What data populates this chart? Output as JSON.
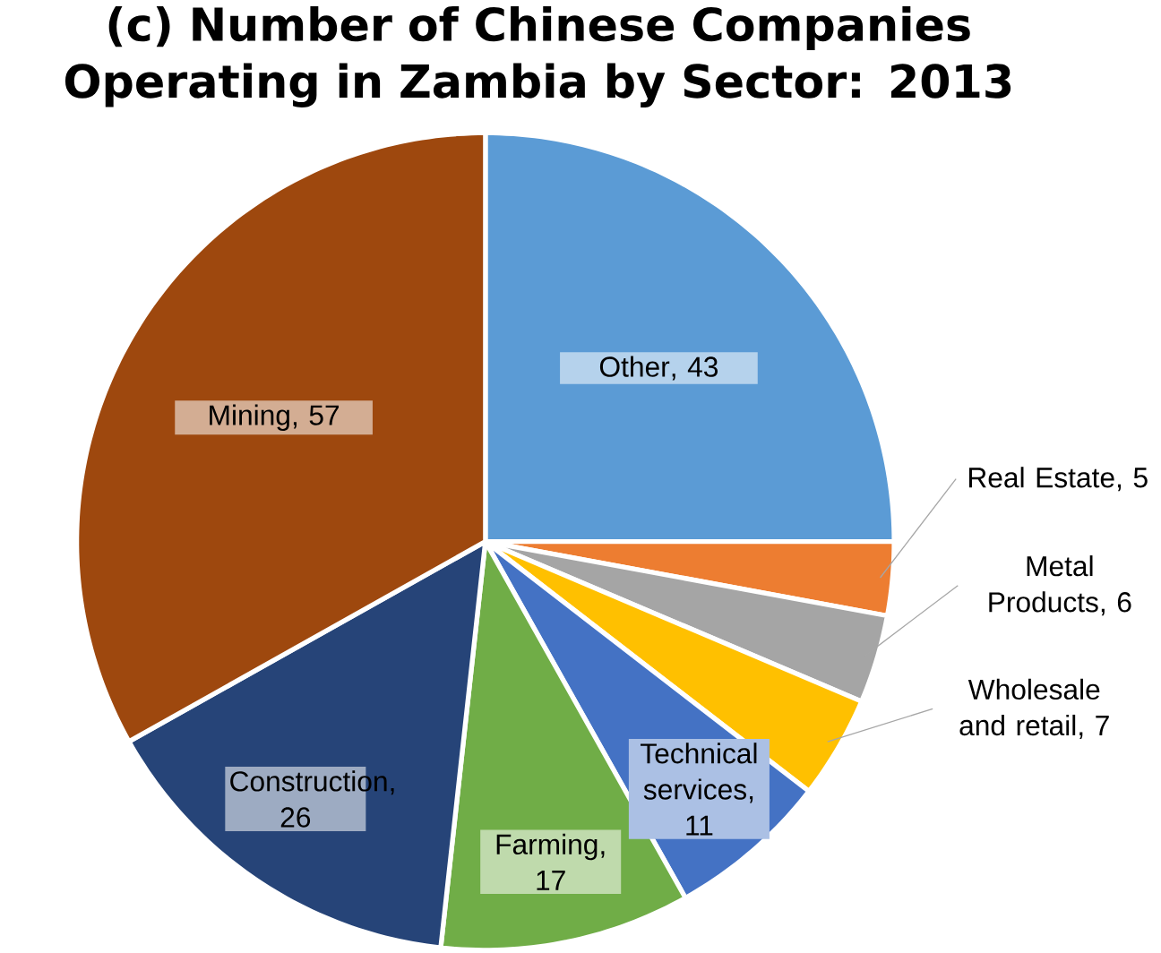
{
  "chart_data": {
    "type": "pie",
    "title": "(c) Number of Chinese Companies Operating in Zambia by Sector: 2013",
    "categories": [
      "Other",
      "Real Estate",
      "Metal Products",
      "Wholesale and retail",
      "Technical services",
      "Farming",
      "Construction",
      "Mining"
    ],
    "values": [
      43,
      5,
      6,
      7,
      11,
      17,
      26,
      57
    ],
    "value_labels": [
      ", 43",
      ", 5",
      ", 6",
      ", 7",
      ", 11",
      ", 17",
      ", 26",
      ", 57"
    ],
    "colors": [
      "#5b9bd5",
      "#ed7d31",
      "#a5a5a5",
      "#ffc000",
      "#4472c4",
      "#70ad47",
      "#264478",
      "#9e480e"
    ]
  }
}
